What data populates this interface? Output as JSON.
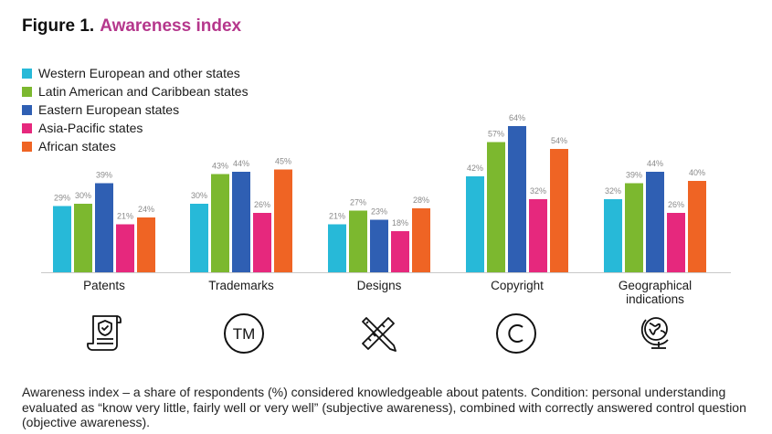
{
  "title": {
    "prefix": "Figure 1.",
    "name": "Awareness index"
  },
  "legend": [
    {
      "label": "Western European and other states",
      "color": "#27b9d8"
    },
    {
      "label": "Latin American and Caribbean states",
      "color": "#7cb82f"
    },
    {
      "label": "Eastern European states",
      "color": "#2f5fb3"
    },
    {
      "label": "Asia-Pacific states",
      "color": "#e6287d"
    },
    {
      "label": "African states",
      "color": "#ef6424"
    }
  ],
  "chart_data": {
    "type": "bar",
    "categories": [
      "Patents",
      "Trademarks",
      "Designs",
      "Copyright",
      "Geographical|indications"
    ],
    "series": [
      {
        "name": "Western European and other states",
        "values": [
          29,
          30,
          21,
          42,
          32
        ]
      },
      {
        "name": "Latin American and Caribbean states",
        "values": [
          30,
          43,
          27,
          57,
          39
        ]
      },
      {
        "name": "Eastern European states",
        "values": [
          39,
          44,
          23,
          64,
          44
        ]
      },
      {
        "name": "Asia-Pacific states",
        "values": [
          21,
          26,
          18,
          32,
          26
        ]
      },
      {
        "name": "African states",
        "values": [
          24,
          45,
          28,
          54,
          40
        ]
      }
    ],
    "value_suffix": "%",
    "ylim": [
      0,
      70
    ],
    "legend_position": "top-left",
    "grid": false
  },
  "icons": [
    "certificate-icon",
    "trademark-icon",
    "ruler-pencil-icon",
    "copyright-icon",
    "globe-icon"
  ],
  "footnote": "Awareness index – a share of respondents (%) considered knowledgeable about patents. Condition: personal understanding evaluated as “know very little, fairly well or very well” (subjective awareness), combined with correctly answered control question (objective awareness)."
}
